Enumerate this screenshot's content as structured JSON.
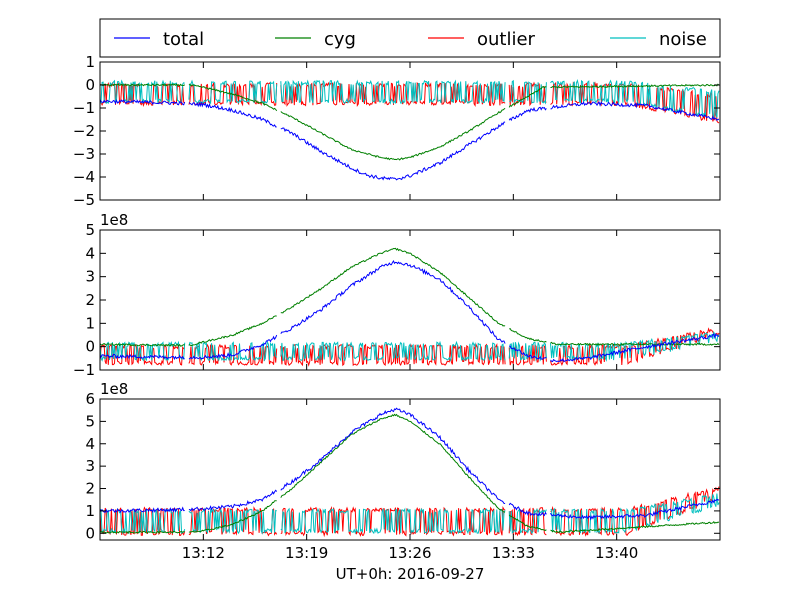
{
  "chart_data": {
    "type": "line",
    "xlabel": "UT+0h: 2016-09-27",
    "x_unit": "minutes (UT)",
    "xlim": [
      785.0,
      827.0
    ],
    "x_ticks": [
      {
        "value": 792,
        "label": "13:12"
      },
      {
        "value": 799,
        "label": "13:19"
      },
      {
        "value": 806,
        "label": "13:26"
      },
      {
        "value": 813,
        "label": "13:33"
      },
      {
        "value": 820,
        "label": "13:40"
      }
    ],
    "legend": {
      "placement": "top",
      "entries": [
        {
          "name": "total",
          "color": "#0000ff"
        },
        {
          "name": "cyg",
          "color": "#008000"
        },
        {
          "name": "outlier",
          "color": "#ff0000"
        },
        {
          "name": "noise",
          "color": "#00bfbf"
        }
      ]
    },
    "panels": [
      {
        "id": "panel1",
        "ylim": [
          -5,
          1
        ],
        "y_ticks": [
          1,
          0,
          -1,
          -2,
          -3,
          -4,
          -5
        ],
        "y_tick_labels": [
          "1",
          "0",
          "−1",
          "−2",
          "−3",
          "−4",
          "−5"
        ],
        "scale_label": "",
        "series": [
          {
            "name": "total",
            "color": "#0000ff",
            "x": [
              785,
              790,
              792,
              794,
              796,
              798,
              800,
              802,
              803,
              804,
              805,
              806,
              808,
              810,
              812,
              814,
              818,
              822,
              827
            ],
            "values": [
              -0.7,
              -0.78,
              -0.85,
              -1.1,
              -1.5,
              -2.1,
              -2.9,
              -3.6,
              -3.9,
              -4.05,
              -4.1,
              -3.95,
              -3.4,
              -2.6,
              -1.8,
              -1.1,
              -0.8,
              -0.9,
              -1.5
            ]
          },
          {
            "name": "cyg",
            "color": "#008000",
            "x": [
              785,
              791,
              792,
              794,
              796,
              798,
              800,
              802,
              804,
              805,
              806,
              808,
              810,
              812,
              814,
              815,
              827
            ],
            "values": [
              0,
              0,
              -0.1,
              -0.4,
              -0.8,
              -1.4,
              -2.1,
              -2.8,
              -3.15,
              -3.25,
              -3.15,
              -2.7,
              -2.0,
              -1.2,
              -0.5,
              -0.1,
              0
            ]
          },
          {
            "name": "outlier",
            "color": "#ff0000",
            "mode": "toggle",
            "low": -0.8,
            "high": 0,
            "start": 785,
            "end": 827,
            "trend_end": -1.6
          },
          {
            "name": "noise",
            "color": "#00bfbf",
            "mode": "toggle",
            "low": -0.7,
            "high": 0.1,
            "start": 785,
            "end": 827,
            "trend_end": -1.4
          }
        ]
      },
      {
        "id": "panel2",
        "ylim": [
          -1,
          5
        ],
        "y_ticks": [
          5,
          4,
          3,
          2,
          1,
          0,
          -1
        ],
        "y_tick_labels": [
          "5",
          "4",
          "3",
          "2",
          "1",
          "0",
          "−1"
        ],
        "scale_label": "1e8",
        "series": [
          {
            "name": "total",
            "color": "#0000ff",
            "x": [
              785,
              790,
              792,
              794,
              796,
              798,
              800,
              802,
              804,
              805,
              806,
              808,
              810,
              812,
              814,
              816,
              818,
              822,
              827
            ],
            "values": [
              -0.4,
              -0.45,
              -0.45,
              -0.35,
              0.1,
              0.8,
              1.6,
              2.6,
              3.4,
              3.65,
              3.5,
              2.9,
              1.7,
              0.3,
              -0.4,
              -0.6,
              -0.5,
              0.0,
              0.5
            ]
          },
          {
            "name": "cyg",
            "color": "#008000",
            "x": [
              785,
              791,
              792,
              794,
              796,
              798,
              800,
              802,
              804,
              805,
              806,
              808,
              810,
              812,
              814,
              816,
              827
            ],
            "values": [
              0.1,
              0.05,
              0.2,
              0.5,
              1.0,
              1.7,
              2.5,
              3.4,
              4.0,
              4.2,
              4.0,
              3.2,
              2.1,
              1.0,
              0.35,
              0.1,
              0.1
            ]
          },
          {
            "name": "outlier",
            "color": "#ff0000",
            "mode": "toggle",
            "low": -0.7,
            "high": 0.0,
            "start": 785,
            "end": 827,
            "trend_end": 0.6
          },
          {
            "name": "noise",
            "color": "#00bfbf",
            "mode": "toggle",
            "low": -0.5,
            "high": 0.1,
            "start": 785,
            "end": 827,
            "trend_end": 0.3
          }
        ]
      },
      {
        "id": "panel3",
        "ylim": [
          -0.3,
          6
        ],
        "y_ticks": [
          6,
          5,
          4,
          3,
          2,
          1,
          0
        ],
        "y_tick_labels": [
          "6",
          "5",
          "4",
          "3",
          "2",
          "1",
          "0"
        ],
        "scale_label": "1e8",
        "series": [
          {
            "name": "total",
            "color": "#0000ff",
            "x": [
              785,
              790,
              792,
              794,
              796,
              798,
              800,
              802,
              804,
              805,
              806,
              808,
              810,
              812,
              814,
              816,
              818,
              822,
              827
            ],
            "values": [
              1.0,
              1.05,
              1.1,
              1.2,
              1.5,
              2.3,
              3.3,
              4.5,
              5.3,
              5.55,
              5.3,
              4.3,
              2.8,
              1.5,
              0.9,
              0.8,
              0.7,
              0.8,
              1.5
            ]
          },
          {
            "name": "cyg",
            "color": "#008000",
            "x": [
              785,
              791,
              792,
              794,
              796,
              798,
              800,
              802,
              804,
              805,
              806,
              808,
              810,
              812,
              814,
              816,
              827
            ],
            "values": [
              0.05,
              0.05,
              0.1,
              0.4,
              1.0,
              2.0,
              3.2,
              4.4,
              5.1,
              5.3,
              5.0,
              4.0,
              2.5,
              1.1,
              0.3,
              0.05,
              0.5
            ]
          },
          {
            "name": "outlier",
            "color": "#ff0000",
            "mode": "toggle",
            "low": 0.0,
            "high": 1.05,
            "start": 785,
            "end": 827,
            "trend_end": 1.6
          },
          {
            "name": "noise",
            "color": "#00bfbf",
            "mode": "toggle",
            "low": 0.1,
            "high": 1.0,
            "start": 785,
            "end": 827,
            "trend_end": 1.3
          }
        ]
      }
    ]
  }
}
